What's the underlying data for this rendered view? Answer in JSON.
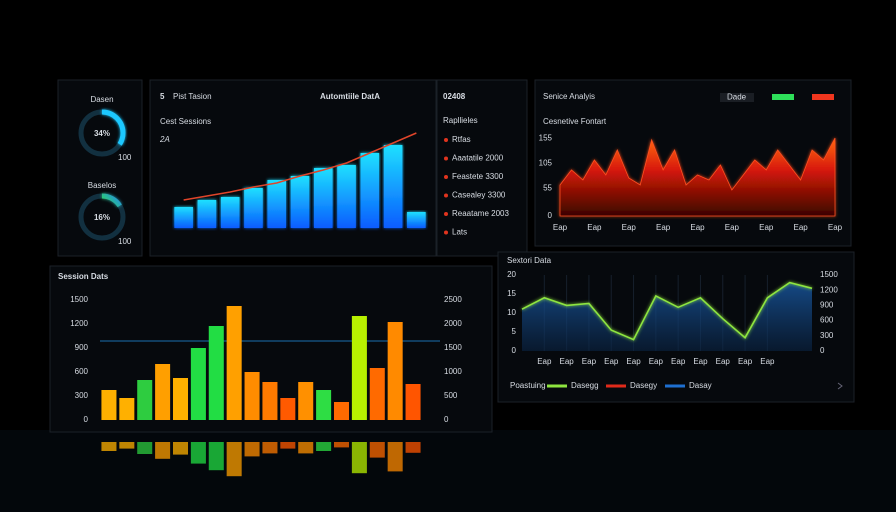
{
  "gauges": [
    {
      "label": "Dasen",
      "value": 34,
      "value_label": "34%",
      "note": "100"
    },
    {
      "label": "Baselos",
      "value": 16,
      "value_label": "16%",
      "note": "100"
    }
  ],
  "list": {
    "counter": "02408",
    "title": "Rapllieles",
    "items": [
      "Rtfas",
      "Aaatatile 2000",
      "Feastete 3300",
      "Casealey 3300",
      "Reaatame 2003",
      "Lats"
    ]
  },
  "chart_data": [
    {
      "type": "bar",
      "icon": "5",
      "title": "Pist Tasion",
      "headline": "Automtiile DatA",
      "subtitle": "Cest Sessions",
      "kpi": "2A",
      "values": [
        21,
        28,
        31,
        40,
        48,
        52,
        60,
        63,
        75,
        83,
        16
      ],
      "line_values": [
        28,
        32,
        36,
        41,
        45,
        52,
        58,
        65,
        75,
        85,
        95
      ],
      "color": "#1ec8ff",
      "line_color": "#e0452a",
      "ylim": [
        0,
        100
      ]
    },
    {
      "type": "area",
      "title": "Senice Analyis",
      "subtitle": "Cesnetive Fontart",
      "legend_label": "Dade",
      "legend_colors": [
        "#2ee05a",
        "#f0361e"
      ],
      "x": [
        0,
        1,
        2,
        3,
        4,
        5,
        6,
        7,
        8,
        9,
        10,
        11,
        12,
        13,
        14,
        15,
        16,
        17,
        18,
        19,
        20,
        21,
        22,
        23,
        24
      ],
      "values": [
        62,
        92,
        72,
        112,
        82,
        132,
        76,
        62,
        152,
        92,
        132,
        62,
        82,
        72,
        102,
        52,
        82,
        112,
        92,
        132,
        102,
        72,
        132,
        112,
        156
      ],
      "color": "#e02010",
      "xlim": [
        0,
        24
      ],
      "ylim": [
        0,
        160
      ],
      "xticks": [
        {
          "value": 0,
          "label": "Eap"
        },
        {
          "value": 3,
          "label": "Eap"
        },
        {
          "value": 6,
          "label": "Eap"
        },
        {
          "value": 9,
          "label": "Eap"
        },
        {
          "value": 12,
          "label": "Eap"
        },
        {
          "value": 15,
          "label": "Eap"
        },
        {
          "value": 18,
          "label": "Eap"
        },
        {
          "value": 21,
          "label": "Eap"
        },
        {
          "value": 24,
          "label": "Eap"
        }
      ],
      "yticks": [
        0,
        55,
        105,
        155
      ]
    },
    {
      "type": "bar",
      "title": "Session Dats",
      "values": [
        375,
        275,
        500,
        700,
        525,
        900,
        1175,
        1425,
        600,
        475,
        275,
        475,
        375,
        225,
        1300,
        650,
        1225,
        450
      ],
      "colors": [
        "#ffb000",
        "#ffb000",
        "#2ecc40",
        "#ff9f00",
        "#ffb000",
        "#22dd44",
        "#22dd44",
        "#ffa000",
        "#ff8c00",
        "#ff7a00",
        "#ff5a00",
        "#ff9000",
        "#2edd44",
        "#ff6a00",
        "#b8f000",
        "#ff6a00",
        "#ff8a00",
        "#ff5500"
      ],
      "ylim": [
        0,
        1500
      ],
      "yticks": [
        0,
        300,
        600,
        900,
        1200,
        1500
      ],
      "y2lim": [
        0,
        2500
      ],
      "y2ticks": [
        0,
        500,
        1000,
        1500,
        2000,
        2500
      ]
    },
    {
      "type": "line",
      "title": "Sextori Data",
      "x": [
        0,
        1,
        2,
        3,
        4,
        5,
        6,
        7,
        8,
        9,
        10,
        11,
        12,
        13
      ],
      "series": [
        {
          "color": "#8ee53f",
          "values": [
            11,
            14,
            12,
            12.5,
            5.5,
            3,
            14.5,
            11.5,
            14,
            8.5,
            3.5,
            14,
            18,
            16.5
          ]
        }
      ],
      "area_color": "#1a5fae",
      "xlim": [
        0,
        13
      ],
      "ylim": [
        0,
        20
      ],
      "yticks": [
        0,
        5,
        10,
        15,
        20
      ],
      "xticks": [
        {
          "value": 1,
          "label": "Eap"
        },
        {
          "value": 2,
          "label": "Eap"
        },
        {
          "value": 3,
          "label": "Eap"
        },
        {
          "value": 4,
          "label": "Eap"
        },
        {
          "value": 5,
          "label": "Eap"
        },
        {
          "value": 6,
          "label": "Eap"
        },
        {
          "value": 7,
          "label": "Eap"
        },
        {
          "value": 8,
          "label": "Eap"
        },
        {
          "value": 9,
          "label": "Eap"
        },
        {
          "value": 10,
          "label": "Eap"
        },
        {
          "value": 11,
          "label": "Eap"
        }
      ],
      "y2lim": [
        0,
        1500
      ],
      "y2ticks": [
        0,
        300,
        600,
        900,
        1200,
        1500
      ],
      "legend": {
        "title": "Poastuing",
        "items": [
          {
            "name": "Dasegg",
            "color": "#8ee53f"
          },
          {
            "name": "Dasegy",
            "color": "#e02a1a"
          },
          {
            "name": "Dasay",
            "color": "#1e6fd0"
          }
        ]
      }
    }
  ]
}
